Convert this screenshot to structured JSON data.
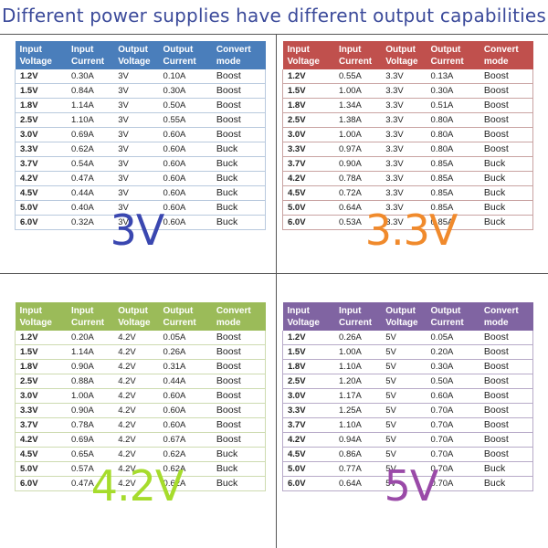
{
  "title": "Different power supplies have different output capabilities",
  "columns": [
    "Input\nVoltage",
    "Input\nCurrent",
    "Output\nVoltage",
    "Output\nCurrent",
    "Convert\nmode"
  ],
  "column_line1": [
    "Input",
    "Input",
    "Output",
    "Output",
    "Convert"
  ],
  "column_line2": [
    "Voltage",
    "Current",
    "Voltage",
    "Current",
    "mode"
  ],
  "tables": [
    {
      "label": "3V",
      "header_color": "#4a7ebb",
      "label_color": "#3a47b0",
      "rows": [
        [
          "1.2V",
          "0.30A",
          "3V",
          "0.10A",
          "Boost"
        ],
        [
          "1.5V",
          "0.84A",
          "3V",
          "0.30A",
          "Boost"
        ],
        [
          "1.8V",
          "1.14A",
          "3V",
          "0.50A",
          "Boost"
        ],
        [
          "2.5V",
          "1.10A",
          "3V",
          "0.55A",
          "Boost"
        ],
        [
          "3.0V",
          "0.69A",
          "3V",
          "0.60A",
          "Boost"
        ],
        [
          "3.3V",
          "0.62A",
          "3V",
          "0.60A",
          "Buck"
        ],
        [
          "3.7V",
          "0.54A",
          "3V",
          "0.60A",
          "Buck"
        ],
        [
          "4.2V",
          "0.47A",
          "3V",
          "0.60A",
          "Buck"
        ],
        [
          "4.5V",
          "0.44A",
          "3V",
          "0.60A",
          "Buck"
        ],
        [
          "5.0V",
          "0.40A",
          "3V",
          "0.60A",
          "Buck"
        ],
        [
          "6.0V",
          "0.32A",
          "3V",
          "0.60A",
          "Buck"
        ]
      ]
    },
    {
      "label": "3.3V",
      "header_color": "#c0504d",
      "label_color": "#f08a2c",
      "rows": [
        [
          "1.2V",
          "0.55A",
          "3.3V",
          "0.13A",
          "Boost"
        ],
        [
          "1.5V",
          "1.00A",
          "3.3V",
          "0.30A",
          "Boost"
        ],
        [
          "1.8V",
          "1.34A",
          "3.3V",
          "0.51A",
          "Boost"
        ],
        [
          "2.5V",
          "1.38A",
          "3.3V",
          "0.80A",
          "Boost"
        ],
        [
          "3.0V",
          "1.00A",
          "3.3V",
          "0.80A",
          "Boost"
        ],
        [
          "3.3V",
          "0.97A",
          "3.3V",
          "0.80A",
          "Boost"
        ],
        [
          "3.7V",
          "0.90A",
          "3.3V",
          "0.85A",
          "Buck"
        ],
        [
          "4.2V",
          "0.78A",
          "3.3V",
          "0.85A",
          "Buck"
        ],
        [
          "4.5V",
          "0.72A",
          "3.3V",
          "0.85A",
          "Buck"
        ],
        [
          "5.0V",
          "0.64A",
          "3.3V",
          "0.85A",
          "Buck"
        ],
        [
          "6.0V",
          "0.53A",
          "3.3V",
          "0.85A",
          "Buck"
        ]
      ]
    },
    {
      "label": "4.2V",
      "header_color": "#9bbb59",
      "label_color": "#a6dc2c",
      "rows": [
        [
          "1.2V",
          "0.20A",
          "4.2V",
          "0.05A",
          "Boost"
        ],
        [
          "1.5V",
          "1.14A",
          "4.2V",
          "0.26A",
          "Boost"
        ],
        [
          "1.8V",
          "0.90A",
          "4.2V",
          "0.31A",
          "Boost"
        ],
        [
          "2.5V",
          "0.88A",
          "4.2V",
          "0.44A",
          "Boost"
        ],
        [
          "3.0V",
          "1.00A",
          "4.2V",
          "0.60A",
          "Boost"
        ],
        [
          "3.3V",
          "0.90A",
          "4.2V",
          "0.60A",
          "Boost"
        ],
        [
          "3.7V",
          "0.78A",
          "4.2V",
          "0.60A",
          "Boost"
        ],
        [
          "4.2V",
          "0.69A",
          "4.2V",
          "0.67A",
          "Boost"
        ],
        [
          "4.5V",
          "0.65A",
          "4.2V",
          "0.62A",
          "Buck"
        ],
        [
          "5.0V",
          "0.57A",
          "4.2V",
          "0.62A",
          "Buck"
        ],
        [
          "6.0V",
          "0.47A",
          "4.2V",
          "0.62A",
          "Buck"
        ]
      ]
    },
    {
      "label": "5V",
      "header_color": "#8064a2",
      "label_color": "#9a4aa8",
      "rows": [
        [
          "1.2V",
          "0.26A",
          "5V",
          "0.05A",
          "Boost"
        ],
        [
          "1.5V",
          "1.00A",
          "5V",
          "0.20A",
          "Boost"
        ],
        [
          "1.8V",
          "1.10A",
          "5V",
          "0.30A",
          "Boost"
        ],
        [
          "2.5V",
          "1.20A",
          "5V",
          "0.50A",
          "Boost"
        ],
        [
          "3.0V",
          "1.17A",
          "5V",
          "0.60A",
          "Boost"
        ],
        [
          "3.3V",
          "1.25A",
          "5V",
          "0.70A",
          "Boost"
        ],
        [
          "3.7V",
          "1.10A",
          "5V",
          "0.70A",
          "Boost"
        ],
        [
          "4.2V",
          "0.94A",
          "5V",
          "0.70A",
          "Boost"
        ],
        [
          "4.5V",
          "0.86A",
          "5V",
          "0.70A",
          "Boost"
        ],
        [
          "5.0V",
          "0.77A",
          "5V",
          "0.70A",
          "Buck"
        ],
        [
          "6.0V",
          "0.64A",
          "5V",
          "0.70A",
          "Buck"
        ]
      ]
    }
  ]
}
